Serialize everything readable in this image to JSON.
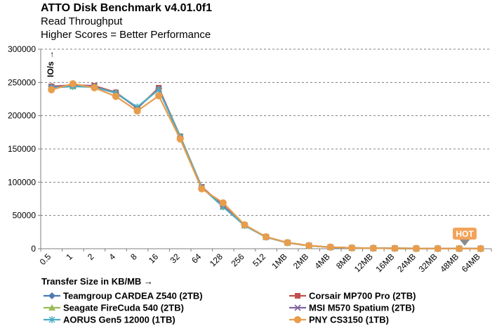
{
  "chart_data": {
    "type": "line",
    "title": "ATTO Disk Benchmark v4.01.0f1",
    "subtitle": "Read Throughput",
    "subtitle2": "Higher Scores = Better Performance",
    "xlabel": "Transfer Size in KB/MB →",
    "ylabel": "IO/s →",
    "ylim": [
      0,
      300000
    ],
    "yticks": [
      0,
      50000,
      100000,
      150000,
      200000,
      250000,
      300000
    ],
    "grid": "dashed horizontal",
    "legend": "bottom",
    "categories": [
      "0.5",
      "1",
      "2",
      "4",
      "8",
      "16",
      "32",
      "64",
      "128",
      "256",
      "512",
      "1MB",
      "2MB",
      "4MB",
      "8MB",
      "12MB",
      "16MB",
      "24MB",
      "32MB",
      "48MB",
      "64MB"
    ],
    "series": [
      {
        "name": "Teamgroup CARDEA Z540 (2TB)",
        "color": "#4e79b4",
        "marker": "diamond",
        "values": [
          244000,
          245000,
          244000,
          235000,
          212000,
          241000,
          168000,
          92000,
          64000,
          35000,
          17500,
          9000,
          4500,
          2300,
          1150,
          780,
          580,
          390,
          290,
          195,
          145
        ]
      },
      {
        "name": "Corsair MP700 Pro (2TB)",
        "color": "#c0504d",
        "marker": "square",
        "values": [
          244000,
          246000,
          245000,
          235000,
          211000,
          242000,
          169000,
          93000,
          65000,
          35500,
          17700,
          9100,
          4550,
          2300,
          1150,
          770,
          580,
          390,
          290,
          195,
          145
        ]
      },
      {
        "name": "Seagate FireCuda 540 (2TB)",
        "color": "#9bbb59",
        "marker": "triangle",
        "values": [
          243000,
          244000,
          244000,
          234000,
          213000,
          240000,
          169000,
          92500,
          63000,
          35000,
          17500,
          9000,
          4500,
          2250,
          1130,
          760,
          570,
          380,
          285,
          190,
          140
        ]
      },
      {
        "name": "MSI M570 Spatium (2TB)",
        "color": "#8064a2",
        "marker": "x",
        "values": [
          243000,
          246000,
          244000,
          234000,
          212000,
          240000,
          168000,
          92000,
          64000,
          35000,
          17600,
          9050,
          4520,
          2280,
          1140,
          765,
          575,
          385,
          288,
          192,
          142
        ]
      },
      {
        "name": "AORUS Gen5 12000 (1TB)",
        "color": "#4bacc6",
        "marker": "asterisk",
        "values": [
          242000,
          244000,
          243000,
          234000,
          213000,
          239000,
          168000,
          92000,
          63000,
          35000,
          17500,
          9000,
          4500,
          2260,
          1130,
          760,
          570,
          380,
          285,
          190,
          140
        ]
      },
      {
        "name": "PNY CS3150 (1TB)",
        "color": "#e89d4c",
        "marker": "circle",
        "values": [
          239000,
          248000,
          242000,
          229000,
          207000,
          230000,
          165000,
          90000,
          69000,
          36000,
          17800,
          9200,
          4600,
          2350,
          1180,
          790,
          590,
          395,
          295,
          198,
          148
        ]
      }
    ]
  },
  "watermark": {
    "text": "HOT"
  }
}
